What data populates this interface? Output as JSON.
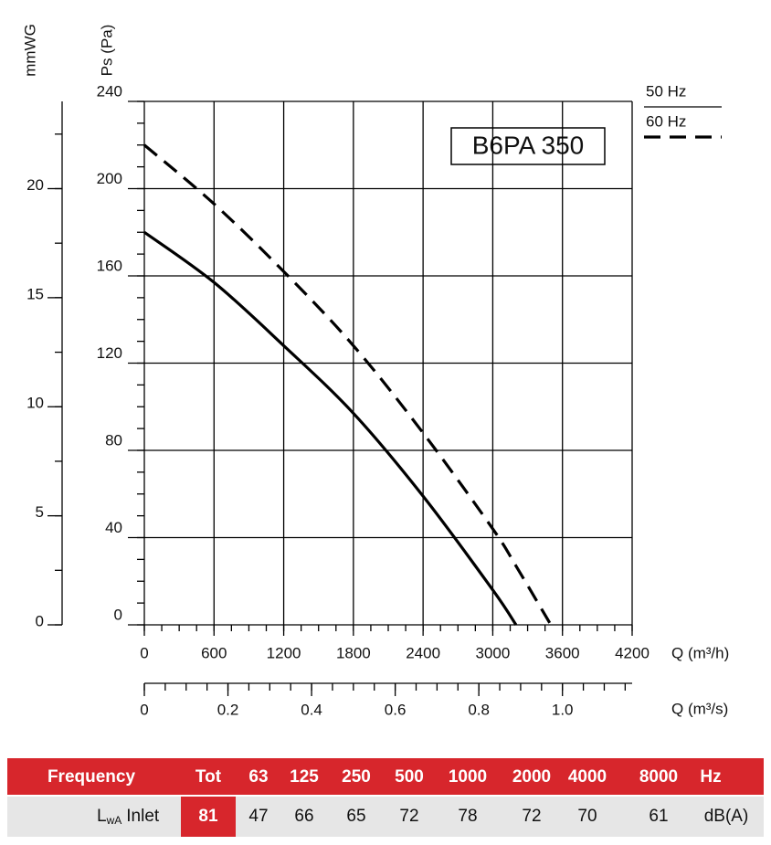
{
  "chart_data": {
    "type": "line",
    "annotation": "B6PA 350",
    "xlabel": "Q (m³/h)",
    "ylabel": "Ps (Pa)",
    "y2label": "mmWG",
    "x2label": "Q (m³/s)",
    "x": [
      0,
      600,
      1200,
      1800,
      2400,
      3000,
      3200,
      3500
    ],
    "series": [
      {
        "name": "50 Hz",
        "color": "#000000",
        "dash": false,
        "values": [
          180,
          157,
          128,
          97,
          59,
          16,
          0,
          null
        ]
      },
      {
        "name": "60 Hz",
        "color": "#000000",
        "dash": true,
        "values": [
          220,
          193,
          162,
          128,
          88,
          44,
          27,
          0
        ]
      }
    ],
    "xlim": [
      0,
      4200
    ],
    "xticks": [
      0,
      600,
      1200,
      1800,
      2400,
      3000,
      3600,
      4200
    ],
    "x_minor_step": 150,
    "ylim": [
      0,
      240
    ],
    "yticks": [
      0,
      40,
      80,
      120,
      160,
      200,
      240
    ],
    "y_minor_step": 10,
    "y2lim": [
      0,
      24
    ],
    "y2ticks": [
      0,
      5,
      10,
      15,
      20
    ],
    "y2_minor_step": 2.5,
    "x2lim": [
      0,
      1.1667
    ],
    "x2ticks": [
      0,
      0.2,
      0.4,
      0.6,
      0.8,
      {
        "value": 1.0,
        "label": "1.0"
      }
    ],
    "x2_minor_step": 0.05,
    "grid": true,
    "legend": "outside-top-right"
  },
  "table": {
    "header": [
      "Frequency",
      "Tot",
      "63",
      "125",
      "250",
      "500",
      "1000",
      "2000",
      "4000",
      "8000",
      "Hz"
    ],
    "row_label": {
      "symbol": "L",
      "subscript": "wA",
      "text": "Inlet"
    },
    "values": [
      81,
      47,
      66,
      65,
      72,
      78,
      72,
      70,
      61
    ],
    "unit": "dB(A)"
  }
}
